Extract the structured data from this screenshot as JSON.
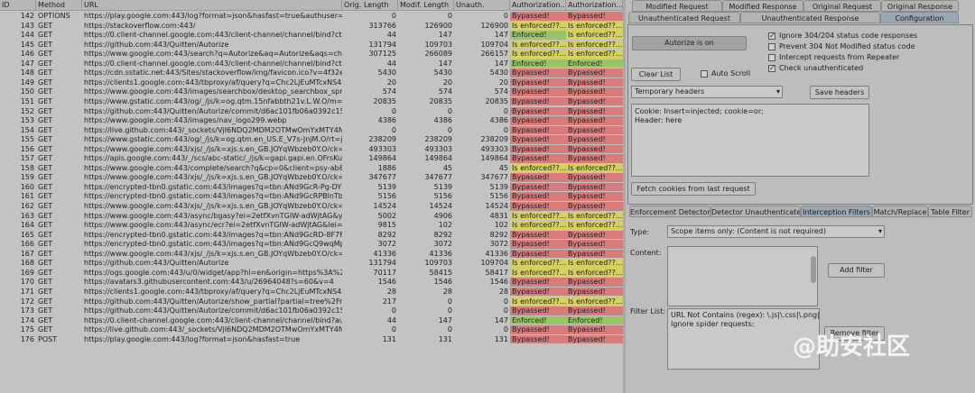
{
  "table": {
    "columns": [
      "ID",
      "Method",
      "URL",
      "Orig. Length",
      "Modif. Length",
      "Unauth. Length",
      "Authorization...",
      "Authorization..."
    ],
    "status_colors": {
      "Bypassed!": "#d77b7b",
      "Is enforced??...": "#d6cf62",
      "Enforced!": "#9cc465"
    },
    "rows": [
      [
        142,
        "OPTIONS",
        "https://play.google.com:443/log?format=json&hasfast=true&authuser=0",
        0,
        0,
        0,
        "Bypassed!",
        "Bypassed!"
      ],
      [
        143,
        "GET",
        "https://stackoverflow.com:443/",
        313766,
        126900,
        126900,
        "Is enforced??...",
        "Is enforced??..."
      ],
      [
        144,
        "GET",
        "https://0.client-channel.google.com:443/client-channel/channel/bind?ctype=...",
        44,
        147,
        147,
        "Enforced!",
        "Is enforced??..."
      ],
      [
        145,
        "GET",
        "https://github.com:443/Quitten/Autorize",
        131794,
        109703,
        109704,
        "Is enforced??...",
        "Is enforced??..."
      ],
      [
        146,
        "GET",
        "https://www.google.com:443/search?q=Autorize&aq=Autorize&aqs=chrom...",
        307125,
        266089,
        266157,
        "Is enforced??...",
        "Is enforced??..."
      ],
      [
        147,
        "GET",
        "https://0.client-channel.google.com:443/client-channel/channel/bind?ctype=...",
        44,
        147,
        147,
        "Enforced!",
        "Enforced!"
      ],
      [
        148,
        "GET",
        "https://cdn.sstatic.net:443/Sites/stackoverflow/img/favicon.ico?v=4f32ecc8f...",
        5430,
        5430,
        5430,
        "Bypassed!",
        "Bypassed!"
      ],
      [
        149,
        "GET",
        "https://clients1.google.com:443/tbproxy/af/query?q=Chc2LjEuMTcxNS4xND...",
        20,
        20,
        20,
        "Bypassed!",
        "Bypassed!"
      ],
      [
        150,
        "GET",
        "https://www.google.com:443/images/searchbox/desktop_searchbox_sprites3...",
        574,
        574,
        574,
        "Bypassed!",
        "Bypassed!"
      ],
      [
        151,
        "GET",
        "https://www.gstatic.com:443/og/_/js/k=og.qtm.15nfabbth21v.L.W.O/m=qdi...",
        20835,
        20835,
        20835,
        "Bypassed!",
        "Bypassed!"
      ],
      [
        152,
        "GET",
        "https://github.com:443/Quitten/Autorize/commit/d6ac101fb06a0392c15e99...",
        0,
        0,
        0,
        "Bypassed!",
        "Bypassed!"
      ],
      [
        153,
        "GET",
        "https://www.google.com:443/images/nav_logo299.webp",
        4386,
        4386,
        4386,
        "Bypassed!",
        "Bypassed!"
      ],
      [
        154,
        "GET",
        "https://live.github.com:443/_sockets/VjI6NDQ2MDM2OTMwOmYxMTY4NGY2Y...",
        0,
        0,
        0,
        "Bypassed!",
        "Bypassed!"
      ],
      [
        155,
        "GET",
        "https://www.gstatic.com:443/og/_/js/k=og.qtm.en_US.E_V7s-JnjM.O/rt=j/m=...",
        238209,
        238209,
        238209,
        "Bypassed!",
        "Bypassed!"
      ],
      [
        156,
        "GET",
        "https://www.google.com:443/xjs/_/js/k=xjs.s.en_GB.JOYqWbzeb0Y.O/ck=xjs.s...",
        493303,
        493303,
        493303,
        "Bypassed!",
        "Bypassed!"
      ],
      [
        157,
        "GET",
        "https://apis.google.com:443/_/scs/abc-static/_/js/k=gapi.gapi.en.OFrsKuVZ3...",
        149864,
        149864,
        149864,
        "Bypassed!",
        "Bypassed!"
      ],
      [
        158,
        "GET",
        "https://www.google.com:443/complete/search?q&cp=0&client=psy-ab&xssi...",
        1886,
        45,
        45,
        "Is enforced??...",
        "Is enforced??..."
      ],
      [
        159,
        "GET",
        "https://www.google.com:443/xjs/_/js/k=xjs.s.en_GB.JOYqWbzeb0Y.O/ck=xjs.s...",
        347677,
        347677,
        347677,
        "Bypassed!",
        "Bypassed!"
      ],
      [
        160,
        "GET",
        "https://encrypted-tbn0.gstatic.com:443/images?q=tbn:ANd9GcR-Pg-DYBQ3...",
        5139,
        5139,
        5139,
        "Bypassed!",
        "Bypassed!"
      ],
      [
        161,
        "GET",
        "https://encrypted-tbn0.gstatic.com:443/images?q=tbn:ANd9GcRPBlnTbMbw...",
        5156,
        5156,
        5156,
        "Bypassed!",
        "Bypassed!"
      ],
      [
        162,
        "GET",
        "https://www.google.com:443/xjs/_/js/k=xjs.s.en_GB.JOYqWbzeb0Y.O/ck=xjs.s...",
        14524,
        14524,
        14524,
        "Bypassed!",
        "Bypassed!"
      ],
      [
        163,
        "GET",
        "https://www.google.com:443/async/bgasy?ei=2etfXvnTGIW-adWjtAG&yv=3...",
        5002,
        4906,
        4831,
        "Is enforced??...",
        "Is enforced??..."
      ],
      [
        164,
        "GET",
        "https://www.google.com:443/async/ecr?ei=2etfXvnTGIW-adWjtAG&lei=2etfX...",
        9815,
        102,
        102,
        "Is enforced??...",
        "Is enforced??..."
      ],
      [
        165,
        "GET",
        "https://encrypted-tbn0.gstatic.com:443/images?q=tbn:ANd9GcRD-8F7FBht...",
        8292,
        8292,
        8292,
        "Bypassed!",
        "Bypassed!"
      ],
      [
        166,
        "GET",
        "https://encrypted-tbn0.gstatic.com:443/images?q=tbn:ANd9GcQ9wqMplydC...",
        3072,
        3072,
        3072,
        "Bypassed!",
        "Bypassed!"
      ],
      [
        167,
        "GET",
        "https://www.google.com:443/xjs/_/js/k=xjs.s.en_GB.JOYqWbzeb0Y.O/ck=xjs.s...",
        41336,
        41336,
        41336,
        "Bypassed!",
        "Bypassed!"
      ],
      [
        168,
        "GET",
        "https://github.com:443/Quitten/Autorize",
        131794,
        109703,
        109704,
        "Is enforced??...",
        "Is enforced??..."
      ],
      [
        169,
        "GET",
        "https://ogs.google.com:443/u/0/widget/app?hl=en&origin=https%3A%2F%2...",
        70117,
        58415,
        58417,
        "Is enforced??...",
        "Is enforced??..."
      ],
      [
        170,
        "GET",
        "https://avatars3.githubusercontent.com:443/u/26964048?s=60&v=4",
        1546,
        1546,
        1546,
        "Bypassed!",
        "Bypassed!"
      ],
      [
        171,
        "GET",
        "https://clients1.google.com:443/tbproxy/af/query?q=Chc2LjEuMTcxNS4xND...",
        28,
        28,
        28,
        "Bypassed!",
        "Bypassed!"
      ],
      [
        172,
        "GET",
        "https://github.com:443/Quitten/Autorize/show_partial?partial=tree%2Frecen...",
        217,
        0,
        0,
        "Is enforced??...",
        "Is enforced??..."
      ],
      [
        173,
        "GET",
        "https://github.com:443/Quitten/Autorize/commit/d6ac101fb06a0392c15e99...",
        0,
        0,
        0,
        "Bypassed!",
        "Bypassed!"
      ],
      [
        174,
        "GET",
        "https://0.client-channel.google.com:443/client-channel/channel/bind?authus...",
        44,
        147,
        147,
        "Enforced!",
        "Enforced!"
      ],
      [
        175,
        "GET",
        "https://live.github.com:443/_sockets/VjI6NDQ2MDM2OTMwOmYxMTY4NGY2Y...",
        0,
        0,
        0,
        "Bypassed!",
        "Bypassed!"
      ],
      [
        176,
        "POST",
        "https://play.google.com:443/log?format=json&hasfast=true",
        131,
        131,
        131,
        "Bypassed!",
        "Bypassed!"
      ]
    ]
  },
  "panel": {
    "tabs_top": [
      "Modified Request",
      "Modified Response",
      "Original Request",
      "Original Response"
    ],
    "tabs_second": [
      "Unauthenticated Request",
      "Unauthenticated Response",
      "Configuration"
    ],
    "autorize_button": "Autorize is on",
    "checkboxes": [
      {
        "label": "Ignore 304/204 status code responses",
        "checked": true
      },
      {
        "label": "Prevent 304 Not Modified status code",
        "checked": false
      },
      {
        "label": "Intercept requests from Repeater",
        "checked": false
      },
      {
        "label": "Check unauthenticated",
        "checked": true
      }
    ],
    "clear_list": "Clear List",
    "auto_scroll": {
      "label": "Auto Scroll",
      "checked": false
    },
    "headers_dropdown": "Temporary headers",
    "save_headers": "Save headers",
    "headers_text": "Cookie: Insert=injected; cookie=or;\nHeader: here",
    "fetch_cookies": "Fetch cookies from last request",
    "filter_tabs": [
      "Enforcement Detector",
      "Detector Unauthenticated",
      "Interception Filters",
      "Match/Replace",
      "Table Filter"
    ],
    "type_label": "Type:",
    "type_value": "Scope items only: (Content is not required)",
    "content_label": "Content:",
    "add_filter": "Add filter",
    "filter_list_label": "Filter List:",
    "filter_items": [
      "URL Not Contains (regex): \\.js|\\.css|\\.png|\\.jpg|",
      "Ignore spider requests:"
    ],
    "remove_filter": "Remove filter"
  },
  "watermark": "@助安社区"
}
